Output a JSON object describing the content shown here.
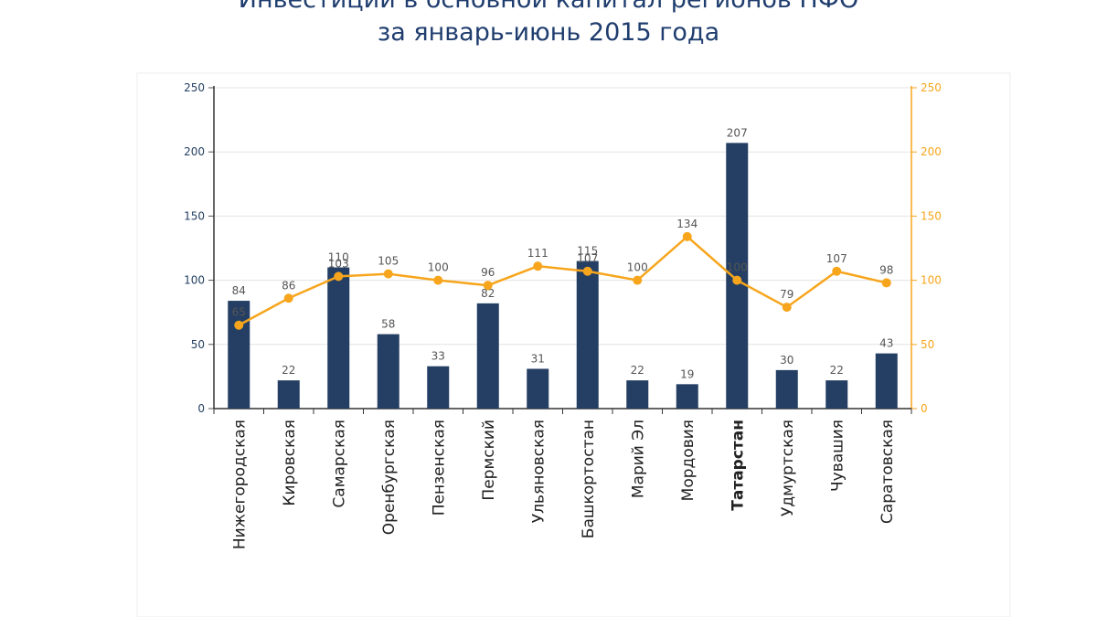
{
  "header": {
    "title_line1": "Инвестиции в основной капитал регионов ПФО",
    "title_line2": "за январь-июнь 2015 года"
  },
  "chart_data": {
    "type": "bar",
    "categories": [
      "Нижегородская",
      "Кировская",
      "Самарская",
      "Оренбургская",
      "Пензенская",
      "Пермский",
      "Ульяновская",
      "Башкортостан",
      "Марий Эл",
      "Мордовия",
      "Татарстан",
      "Удмуртская",
      "Чувашия",
      "Саратовская"
    ],
    "highlight_category": "Татарстан",
    "series": [
      {
        "type": "bar",
        "axis": "left",
        "color": "#243f63",
        "values": [
          84,
          22,
          110,
          58,
          33,
          82,
          31,
          115,
          22,
          19,
          207,
          30,
          22,
          43
        ]
      },
      {
        "type": "line",
        "axis": "right",
        "color": "#f7a51c",
        "values": [
          65,
          86,
          103,
          105,
          100,
          96,
          111,
          107,
          100,
          134,
          100,
          79,
          107,
          98
        ],
        "labels": [
          "65",
          "86",
          "103",
          "105",
          "100",
          "96",
          "111",
          "107",
          "100",
          "134",
          "100",
          "79",
          "107",
          "98"
        ]
      }
    ],
    "bar_labels": [
      "84",
      "22",
      "110",
      "58",
      "33",
      "82",
      "31",
      "115",
      "22",
      "19",
      "207",
      "30",
      "22",
      "43"
    ],
    "y_left": {
      "min": 0,
      "max": 250,
      "ticks": [
        0,
        50,
        100,
        150,
        200,
        250
      ],
      "color": "#243f63"
    },
    "y_right": {
      "min": 0,
      "max": 250,
      "ticks": [
        0,
        50,
        100,
        150,
        200,
        250
      ],
      "color": "#f7a51c"
    },
    "grid": true,
    "colors": {
      "bar": "#243f63",
      "line": "#f7a51c",
      "highlight_label": "#1e9a4d",
      "grid": "#e3e3e3"
    }
  }
}
